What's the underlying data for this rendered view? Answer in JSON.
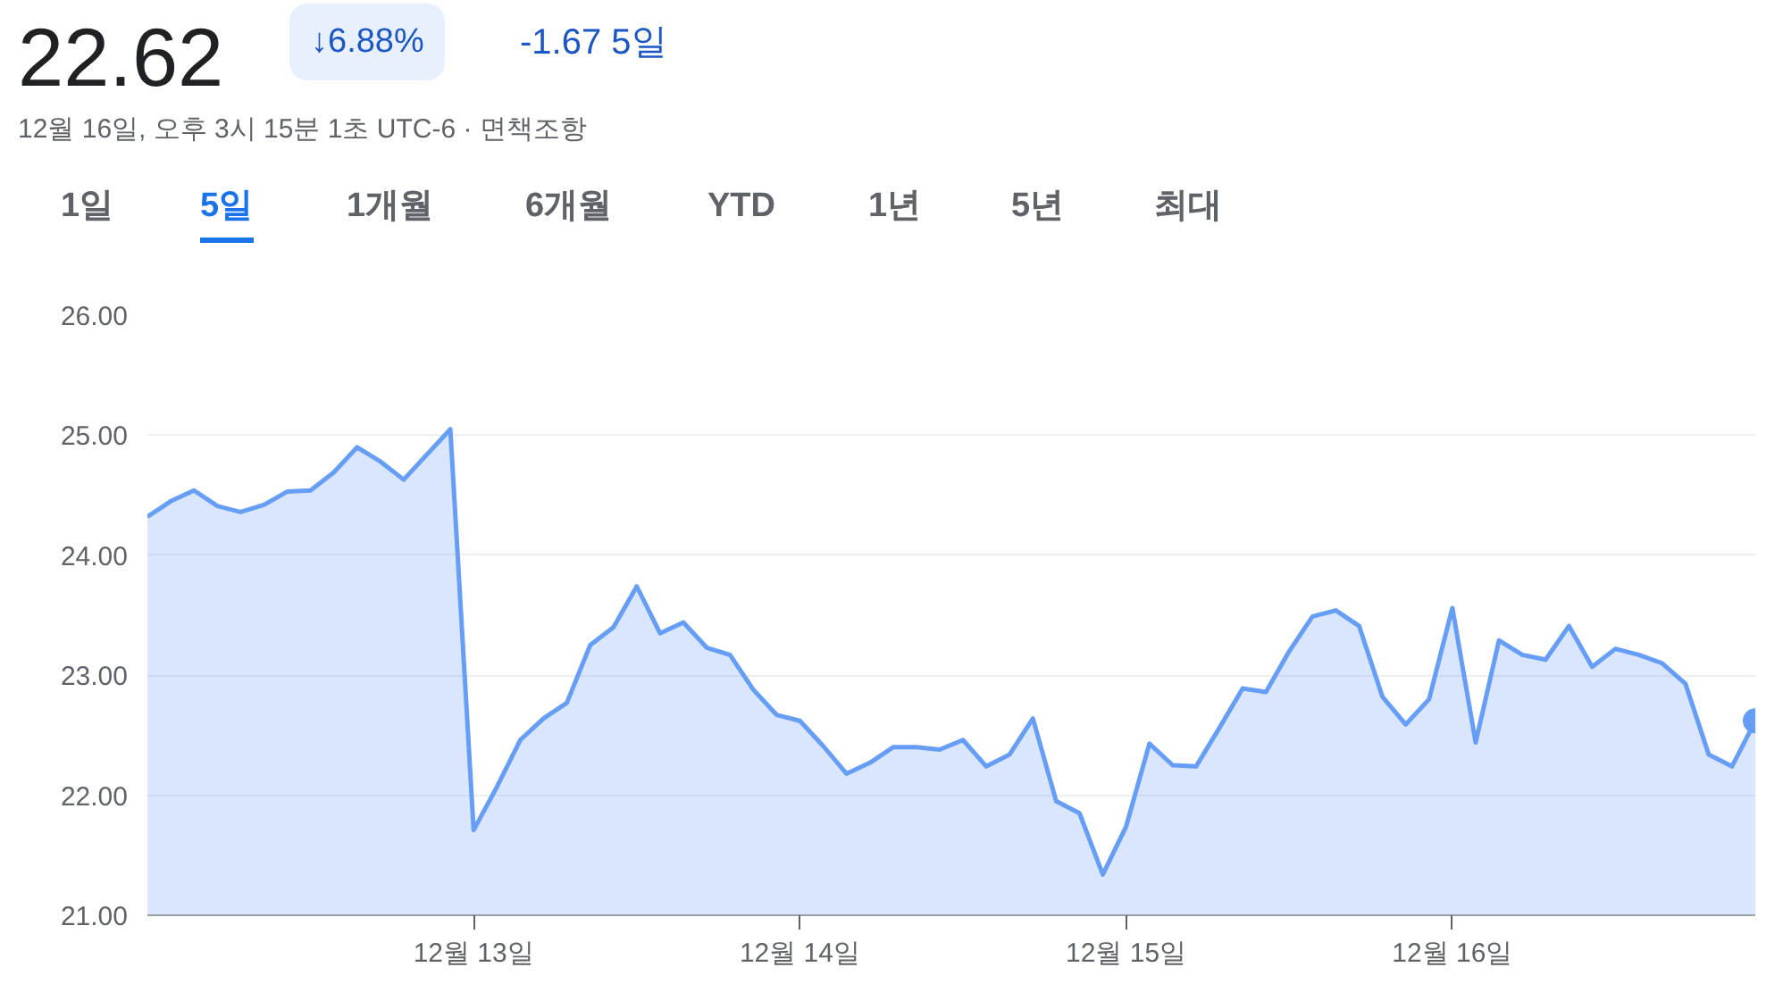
{
  "chart_data": {
    "type": "area",
    "title": "22.62",
    "subtitle": "12월 16일, 오후 3시 15분 1초 UTC-6 · 면책조항",
    "annotations": [
      "↓6.88%",
      "-1.67 5일",
      "1일",
      "5일",
      "1개월",
      "6개월",
      "YTD",
      "1년",
      "5년",
      "최대"
    ],
    "categories": [
      null,
      null,
      null,
      null,
      null,
      null,
      null,
      null,
      null,
      null,
      null,
      null,
      null,
      null,
      "12월 13일",
      null,
      null,
      null,
      null,
      null,
      null,
      null,
      null,
      null,
      null,
      null,
      null,
      null,
      "12월 14일",
      null,
      null,
      null,
      null,
      null,
      null,
      null,
      null,
      null,
      null,
      null,
      null,
      null,
      "12월 15일",
      null,
      null,
      null,
      null,
      null,
      null,
      null,
      null,
      null,
      null,
      null,
      null,
      null,
      "12월 16일",
      null,
      null,
      null,
      null,
      null,
      null,
      null,
      null,
      null,
      null,
      null,
      null,
      null
    ],
    "series": [
      {
        "color": "#669df6",
        "values": [
          24.32,
          24.45,
          24.54,
          24.41,
          24.36,
          24.42,
          24.53,
          24.54,
          24.69,
          24.9,
          24.78,
          24.63,
          24.84,
          25.05,
          21.71,
          22.07,
          22.46,
          22.64,
          22.77,
          23.25,
          23.4,
          23.74,
          23.35,
          23.44,
          23.23,
          23.17,
          22.88,
          22.67,
          22.62,
          22.41,
          22.18,
          22.27,
          22.4,
          22.4,
          22.38,
          22.46,
          22.24,
          22.34,
          22.64,
          21.95,
          21.85,
          21.34,
          21.74,
          22.43,
          22.25,
          22.24,
          22.56,
          22.89,
          22.86,
          23.2,
          23.49,
          23.54,
          23.41,
          22.82,
          22.59,
          22.8,
          23.56,
          22.44,
          23.29,
          23.17,
          23.13,
          23.41,
          23.07,
          23.22,
          23.17,
          23.1,
          22.93,
          22.34,
          22.24,
          22.62
        ]
      }
    ],
    "ylim": [
      21,
      26
    ],
    "yticks": [
      {
        "value": 21,
        "label": "21.00"
      },
      {
        "value": 22,
        "label": "22.00"
      },
      {
        "value": 23,
        "label": "23.00"
      },
      {
        "value": 24,
        "label": "24.00"
      },
      {
        "value": 25,
        "label": "25.00"
      },
      {
        "value": 26,
        "label": "26.00"
      }
    ],
    "grid": "y"
  }
}
